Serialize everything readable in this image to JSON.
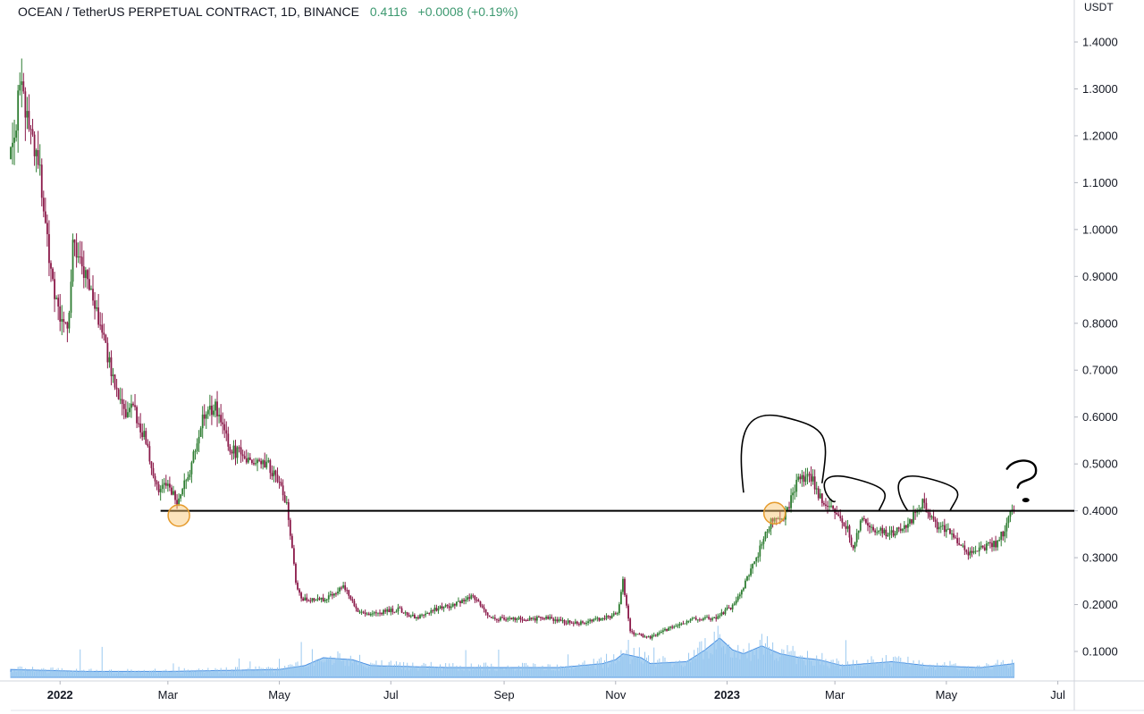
{
  "header": {
    "symbol": "OCEAN / TetherUS PERPETUAL CONTRACT, 1D, BINANCE",
    "last": "0.4116",
    "change": "+0.0008 (+0.19%)",
    "change_color": "#3d9970"
  },
  "price_axis": {
    "unit": "USDT",
    "ticks": [
      "1.4000",
      "1.3000",
      "1.2000",
      "1.1000",
      "1.0000",
      "0.9000",
      "0.8000",
      "0.7000",
      "0.6000",
      "0.5000",
      "0.4000",
      "0.3000",
      "0.2000",
      "0.1000"
    ]
  },
  "time_axis": {
    "labels": [
      {
        "text": "2022",
        "bold": true
      },
      {
        "text": "Mar",
        "bold": false
      },
      {
        "text": "May",
        "bold": false
      },
      {
        "text": "Jul",
        "bold": false
      },
      {
        "text": "Sep",
        "bold": false
      },
      {
        "text": "Nov",
        "bold": false
      },
      {
        "text": "2023",
        "bold": true
      },
      {
        "text": "Mar",
        "bold": false
      },
      {
        "text": "May",
        "bold": false
      },
      {
        "text": "Jul",
        "bold": false
      }
    ]
  },
  "chart_data": {
    "type": "candlestick",
    "x_range": [
      "2021-12-05",
      "2023-07-10"
    ],
    "ylim": [
      0.0,
      1.44
    ],
    "grid": false,
    "colors": {
      "up": "#2e7d32",
      "down": "#8b1a4a",
      "volume": "#90c3ee",
      "volume_line": "#4a90e2"
    },
    "price_path": [
      [
        "2021-12-05",
        1.15
      ],
      [
        "2021-12-10",
        1.3
      ],
      [
        "2021-12-14",
        1.24
      ],
      [
        "2021-12-20",
        1.15
      ],
      [
        "2021-12-26",
        0.95
      ],
      [
        "2021-12-31",
        0.82
      ],
      [
        "2022-01-05",
        0.78
      ],
      [
        "2022-01-08",
        0.96
      ],
      [
        "2022-01-13",
        0.92
      ],
      [
        "2022-01-18",
        0.86
      ],
      [
        "2022-01-24",
        0.79
      ],
      [
        "2022-01-31",
        0.66
      ],
      [
        "2022-02-06",
        0.6
      ],
      [
        "2022-02-10",
        0.62
      ],
      [
        "2022-02-16",
        0.56
      ],
      [
        "2022-02-23",
        0.45
      ],
      [
        "2022-03-01",
        0.45
      ],
      [
        "2022-03-06",
        0.42
      ],
      [
        "2022-03-13",
        0.48
      ],
      [
        "2022-03-20",
        0.6
      ],
      [
        "2022-03-27",
        0.62
      ],
      [
        "2022-04-04",
        0.53
      ],
      [
        "2022-04-11",
        0.52
      ],
      [
        "2022-04-18",
        0.5
      ],
      [
        "2022-04-25",
        0.5
      ],
      [
        "2022-05-05",
        0.42
      ],
      [
        "2022-05-10",
        0.25
      ],
      [
        "2022-05-13",
        0.21
      ],
      [
        "2022-05-25",
        0.21
      ],
      [
        "2022-06-05",
        0.24
      ],
      [
        "2022-06-12",
        0.19
      ],
      [
        "2022-06-20",
        0.18
      ],
      [
        "2022-07-05",
        0.19
      ],
      [
        "2022-07-15",
        0.17
      ],
      [
        "2022-07-25",
        0.19
      ],
      [
        "2022-08-05",
        0.2
      ],
      [
        "2022-08-15",
        0.22
      ],
      [
        "2022-08-25",
        0.17
      ],
      [
        "2022-09-10",
        0.17
      ],
      [
        "2022-09-25",
        0.17
      ],
      [
        "2022-10-10",
        0.16
      ],
      [
        "2022-10-25",
        0.17
      ],
      [
        "2022-11-02",
        0.18
      ],
      [
        "2022-11-05",
        0.25
      ],
      [
        "2022-11-09",
        0.14
      ],
      [
        "2022-11-20",
        0.13
      ],
      [
        "2022-12-01",
        0.15
      ],
      [
        "2022-12-15",
        0.17
      ],
      [
        "2022-12-25",
        0.17
      ],
      [
        "2023-01-05",
        0.2
      ],
      [
        "2023-01-15",
        0.28
      ],
      [
        "2023-01-25",
        0.38
      ],
      [
        "2023-02-01",
        0.38
      ],
      [
        "2023-02-08",
        0.46
      ],
      [
        "2023-02-15",
        0.48
      ],
      [
        "2023-02-22",
        0.42
      ],
      [
        "2023-03-01",
        0.4
      ],
      [
        "2023-03-08",
        0.36
      ],
      [
        "2023-03-11",
        0.32
      ],
      [
        "2023-03-15",
        0.38
      ],
      [
        "2023-03-22",
        0.36
      ],
      [
        "2023-04-01",
        0.35
      ],
      [
        "2023-04-10",
        0.37
      ],
      [
        "2023-04-18",
        0.42
      ],
      [
        "2023-04-25",
        0.37
      ],
      [
        "2023-05-05",
        0.35
      ],
      [
        "2023-05-12",
        0.31
      ],
      [
        "2023-05-20",
        0.32
      ],
      [
        "2023-05-28",
        0.33
      ],
      [
        "2023-06-02",
        0.36
      ],
      [
        "2023-06-07",
        0.41
      ]
    ],
    "volume_path": [
      [
        "2021-12-05",
        0.02
      ],
      [
        "2022-01-15",
        0.015
      ],
      [
        "2022-03-01",
        0.015
      ],
      [
        "2022-05-01",
        0.02
      ],
      [
        "2022-05-15",
        0.03
      ],
      [
        "2022-05-25",
        0.05
      ],
      [
        "2022-06-10",
        0.045
      ],
      [
        "2022-06-20",
        0.03
      ],
      [
        "2022-08-01",
        0.025
      ],
      [
        "2022-10-01",
        0.025
      ],
      [
        "2022-10-25",
        0.035
      ],
      [
        "2022-11-01",
        0.045
      ],
      [
        "2022-11-05",
        0.06
      ],
      [
        "2022-11-15",
        0.05
      ],
      [
        "2022-11-20",
        0.035
      ],
      [
        "2022-12-10",
        0.04
      ],
      [
        "2022-12-20",
        0.07
      ],
      [
        "2022-12-28",
        0.1
      ],
      [
        "2023-01-04",
        0.07
      ],
      [
        "2023-01-10",
        0.06
      ],
      [
        "2023-01-20",
        0.08
      ],
      [
        "2023-01-30",
        0.06
      ],
      [
        "2023-02-10",
        0.05
      ],
      [
        "2023-02-20",
        0.045
      ],
      [
        "2023-03-05",
        0.03
      ],
      [
        "2023-04-01",
        0.04
      ],
      [
        "2023-04-20",
        0.03
      ],
      [
        "2023-05-20",
        0.025
      ],
      [
        "2023-06-07",
        0.035
      ]
    ],
    "support_line": {
      "price": 0.4,
      "from": "2022-02-25",
      "to": "2023-07-10",
      "color": "#000000"
    },
    "markers": [
      {
        "date": "2022-03-07",
        "price": 0.39
      },
      {
        "date": "2023-01-27",
        "price": 0.395
      }
    ],
    "drawings": [
      {
        "type": "arc",
        "from": [
          "2023-01-10",
          0.44
        ],
        "peak": [
          "2023-02-01",
          0.6
        ],
        "to": [
          "2023-02-22",
          0.46
        ]
      },
      {
        "type": "arc",
        "from": [
          "2023-03-01",
          0.42
        ],
        "peak": [
          "2023-03-10",
          0.47
        ],
        "to": [
          "2023-03-25",
          0.4
        ]
      },
      {
        "type": "arc",
        "from": [
          "2023-04-10",
          0.4
        ],
        "peak": [
          "2023-04-20",
          0.47
        ],
        "to": [
          "2023-05-03",
          0.4
        ]
      },
      {
        "type": "question-mark",
        "at": [
          "2023-06-12",
          0.48
        ]
      }
    ]
  }
}
